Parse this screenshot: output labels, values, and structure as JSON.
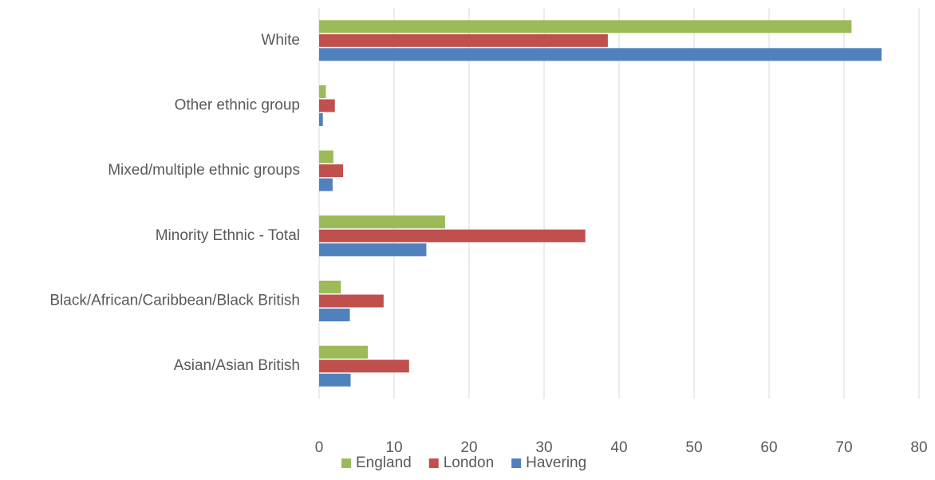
{
  "chart_data": {
    "type": "bar",
    "orientation": "horizontal",
    "categories": [
      "White",
      "Other ethnic group",
      "Mixed/multiple ethnic groups",
      "Minority Ethnic - Total",
      "Black/African/Caribbean/Black British",
      "Asian/Asian British"
    ],
    "series": [
      {
        "name": "England",
        "color": "#9BBB59",
        "values": [
          71.0,
          0.9,
          1.9,
          16.8,
          2.9,
          6.5
        ]
      },
      {
        "name": "London",
        "color": "#C0504D",
        "values": [
          38.5,
          2.1,
          3.2,
          35.5,
          8.6,
          12.0
        ]
      },
      {
        "name": "Havering",
        "color": "#4F81BD",
        "values": [
          75.0,
          0.5,
          1.8,
          14.3,
          4.1,
          4.2
        ]
      }
    ],
    "xticks": [
      "0",
      "10",
      "20",
      "30",
      "40",
      "50",
      "60",
      "70",
      "80"
    ],
    "xlim": [
      0,
      80
    ],
    "grid": "vertical",
    "legend": "bottom-center",
    "title": "",
    "xlabel": "",
    "ylabel": ""
  }
}
